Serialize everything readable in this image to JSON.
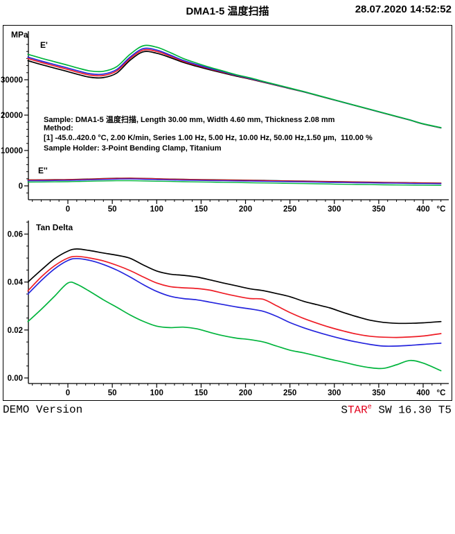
{
  "header": {
    "title": "DMA1-5 温度扫描",
    "datetime": "28.07.2020 14:52:52"
  },
  "footer": {
    "left": "DEMO Version",
    "right_s": "S",
    "right_tar": "TAR",
    "right_sup": "e",
    "right_rest": " SW 16.30 T5"
  },
  "colors": {
    "freq_1hz": "#000000",
    "freq_5hz": "#ee1c25",
    "freq_10hz": "#2424dd",
    "freq_50hz": "#00b43c",
    "frame": "#000000"
  },
  "chart_data": [
    {
      "type": "line",
      "id": "modulus-chart",
      "y_axis": {
        "label": "MPa",
        "major_ticks": [
          0,
          10000,
          20000,
          30000
        ],
        "minor_step": 2000,
        "decimals": 0,
        "range": [
          -3900,
          43700
        ]
      },
      "x_axis": {
        "unit": "°C",
        "major_ticks": [
          0,
          50,
          100,
          150,
          200,
          250,
          300,
          350,
          400
        ],
        "minor_step": 10,
        "range": [
          -45,
          429
        ]
      },
      "group_labels": {
        "storage": "E'",
        "loss": "E''"
      },
      "annotations": [
        "Sample: DMA1-5 温度扫描, Length 30.00 mm, Width 4.60 mm, Thickness 2.08 mm",
        "Method:",
        "[1] -45.0..420.0 °C, 2.00 K/min, Series 1.00 Hz, 5.00 Hz, 10.00 Hz, 50.00 Hz,1.50 µm,  110.00 %",
        "Sample Holder: 3-Point Bending Clamp, Titanium"
      ],
      "x": [
        -45,
        -30,
        -15,
        0,
        10,
        25,
        40,
        55,
        70,
        85,
        100,
        115,
        130,
        145,
        160,
        175,
        190,
        205,
        220,
        235,
        250,
        265,
        280,
        295,
        310,
        325,
        340,
        355,
        370,
        385,
        400,
        420
      ],
      "series": [
        {
          "group": "E'",
          "name": "1.00 Hz",
          "color": "#000000",
          "values": [
            35400,
            34300,
            33300,
            32300,
            31600,
            30700,
            30600,
            31900,
            35500,
            37900,
            37500,
            36300,
            34900,
            33800,
            32800,
            31900,
            31000,
            30200,
            29300,
            28400,
            27500,
            26600,
            25600,
            24600,
            23600,
            22600,
            21600,
            20600,
            19600,
            18600,
            17500,
            16400
          ]
        },
        {
          "group": "E'",
          "name": "5.00 Hz",
          "color": "#ee1c25",
          "values": [
            36000,
            34900,
            33900,
            32900,
            32200,
            31300,
            31200,
            32500,
            36000,
            38400,
            38000,
            36700,
            35200,
            34100,
            33050,
            32100,
            31150,
            30300,
            29380,
            28460,
            27550,
            26640,
            25630,
            24620,
            23620,
            22610,
            21610,
            20610,
            19610,
            18610,
            17510,
            16420
          ]
        },
        {
          "group": "E'",
          "name": "10.00 Hz",
          "color": "#2424dd",
          "values": [
            36400,
            35300,
            34300,
            33300,
            32600,
            31700,
            31600,
            32900,
            36400,
            38800,
            38400,
            37000,
            35450,
            34300,
            33200,
            32250,
            31250,
            30400,
            29450,
            28510,
            27590,
            26670,
            25650,
            24640,
            23630,
            22620,
            21620,
            20620,
            19620,
            18620,
            17520,
            16440
          ]
        },
        {
          "group": "E'",
          "name": "50.00 Hz",
          "color": "#00b43c",
          "values": [
            37200,
            36100,
            35100,
            34100,
            33400,
            32500,
            32400,
            33700,
            37200,
            39600,
            39200,
            37700,
            36000,
            34700,
            33500,
            32450,
            31400,
            30550,
            29550,
            28600,
            27650,
            26700,
            25680,
            24660,
            23650,
            22640,
            21640,
            20640,
            19640,
            18640,
            17550,
            16480
          ]
        },
        {
          "group": "E''",
          "name": "1.00 Hz",
          "color": "#000000",
          "values": [
            1700,
            1720,
            1760,
            1800,
            1850,
            1950,
            2060,
            2160,
            2190,
            2120,
            2020,
            1930,
            1860,
            1800,
            1750,
            1700,
            1650,
            1600,
            1540,
            1480,
            1420,
            1360,
            1300,
            1240,
            1180,
            1120,
            1060,
            1000,
            950,
            900,
            850,
            800
          ]
        },
        {
          "group": "E''",
          "name": "5.00 Hz",
          "color": "#ee1c25",
          "values": [
            1640,
            1660,
            1700,
            1740,
            1790,
            1890,
            2000,
            2100,
            2130,
            2060,
            1960,
            1870,
            1800,
            1740,
            1690,
            1640,
            1590,
            1540,
            1480,
            1420,
            1360,
            1300,
            1240,
            1180,
            1120,
            1060,
            1000,
            940,
            890,
            840,
            790,
            740
          ]
        },
        {
          "group": "E''",
          "name": "10.00 Hz",
          "color": "#2424dd",
          "values": [
            1450,
            1470,
            1510,
            1550,
            1600,
            1700,
            1810,
            1910,
            1940,
            1870,
            1770,
            1680,
            1610,
            1550,
            1500,
            1450,
            1400,
            1350,
            1290,
            1230,
            1170,
            1110,
            1050,
            990,
            940,
            890,
            840,
            790,
            740,
            690,
            640,
            590
          ]
        },
        {
          "group": "E''",
          "name": "50.00 Hz",
          "color": "#00b43c",
          "values": [
            1080,
            1100,
            1140,
            1180,
            1230,
            1310,
            1400,
            1450,
            1460,
            1400,
            1320,
            1250,
            1180,
            1120,
            1060,
            1000,
            940,
            880,
            820,
            760,
            700,
            640,
            580,
            520,
            460,
            400,
            350,
            300,
            260,
            220,
            180,
            140
          ]
        }
      ]
    },
    {
      "type": "line",
      "id": "tan-delta-chart",
      "title": "Tan Delta",
      "y_axis": {
        "label": "",
        "major_ticks": [
          0,
          0.02,
          0.04,
          0.06
        ],
        "minor_step": 0.005,
        "decimals": 2,
        "range": [
          -0.0023,
          0.0657
        ]
      },
      "x_axis": {
        "unit": "°C",
        "major_ticks": [
          0,
          50,
          100,
          150,
          200,
          250,
          300,
          350,
          400
        ],
        "minor_step": 10,
        "range": [
          -45,
          429
        ]
      },
      "x": [
        -45,
        -30,
        -15,
        0,
        10,
        25,
        40,
        55,
        70,
        85,
        100,
        115,
        130,
        145,
        160,
        175,
        190,
        205,
        220,
        235,
        250,
        265,
        280,
        295,
        310,
        325,
        340,
        355,
        370,
        385,
        400,
        420
      ],
      "series": [
        {
          "group": "Tan Delta",
          "name": "1.00 Hz",
          "color": "#000000",
          "values": [
            0.04,
            0.045,
            0.0497,
            0.0529,
            0.0538,
            0.0531,
            0.0521,
            0.0512,
            0.0499,
            0.0471,
            0.0446,
            0.0433,
            0.0428,
            0.0421,
            0.0409,
            0.0396,
            0.0384,
            0.0372,
            0.0364,
            0.0352,
            0.0339,
            0.032,
            0.0306,
            0.0292,
            0.0273,
            0.0256,
            0.0241,
            0.0232,
            0.0228,
            0.0228,
            0.023,
            0.0235
          ]
        },
        {
          "group": "Tan Delta",
          "name": "5.00 Hz",
          "color": "#ee1c25",
          "values": [
            0.0363,
            0.0421,
            0.0468,
            0.05,
            0.0507,
            0.05,
            0.0488,
            0.047,
            0.0448,
            0.0421,
            0.0396,
            0.0381,
            0.0376,
            0.0373,
            0.0366,
            0.0353,
            0.0341,
            0.0331,
            0.0328,
            0.0301,
            0.0273,
            0.0249,
            0.0229,
            0.0211,
            0.0196,
            0.0183,
            0.0174,
            0.017,
            0.0169,
            0.0171,
            0.0175,
            0.0185
          ]
        },
        {
          "group": "Tan Delta",
          "name": "10.00 Hz",
          "color": "#2424dd",
          "values": [
            0.035,
            0.0406,
            0.0455,
            0.049,
            0.0498,
            0.049,
            0.0473,
            0.045,
            0.0421,
            0.0389,
            0.0361,
            0.0341,
            0.0331,
            0.0326,
            0.0316,
            0.0306,
            0.0296,
            0.0288,
            0.0278,
            0.0257,
            0.0231,
            0.021,
            0.0192,
            0.0176,
            0.0162,
            0.015,
            0.014,
            0.0133,
            0.0133,
            0.0136,
            0.014,
            0.0145
          ]
        },
        {
          "group": "Tan Delta",
          "name": "50.00 Hz",
          "color": "#00b43c",
          "values": [
            0.0235,
            0.0286,
            0.0341,
            0.0396,
            0.0391,
            0.036,
            0.0326,
            0.0295,
            0.0263,
            0.0236,
            0.0216,
            0.021,
            0.0212,
            0.0205,
            0.019,
            0.0176,
            0.0166,
            0.016,
            0.015,
            0.0133,
            0.0116,
            0.0105,
            0.0092,
            0.0078,
            0.0066,
            0.0053,
            0.0043,
            0.004,
            0.0055,
            0.0073,
            0.0062,
            0.003
          ]
        }
      ]
    }
  ]
}
